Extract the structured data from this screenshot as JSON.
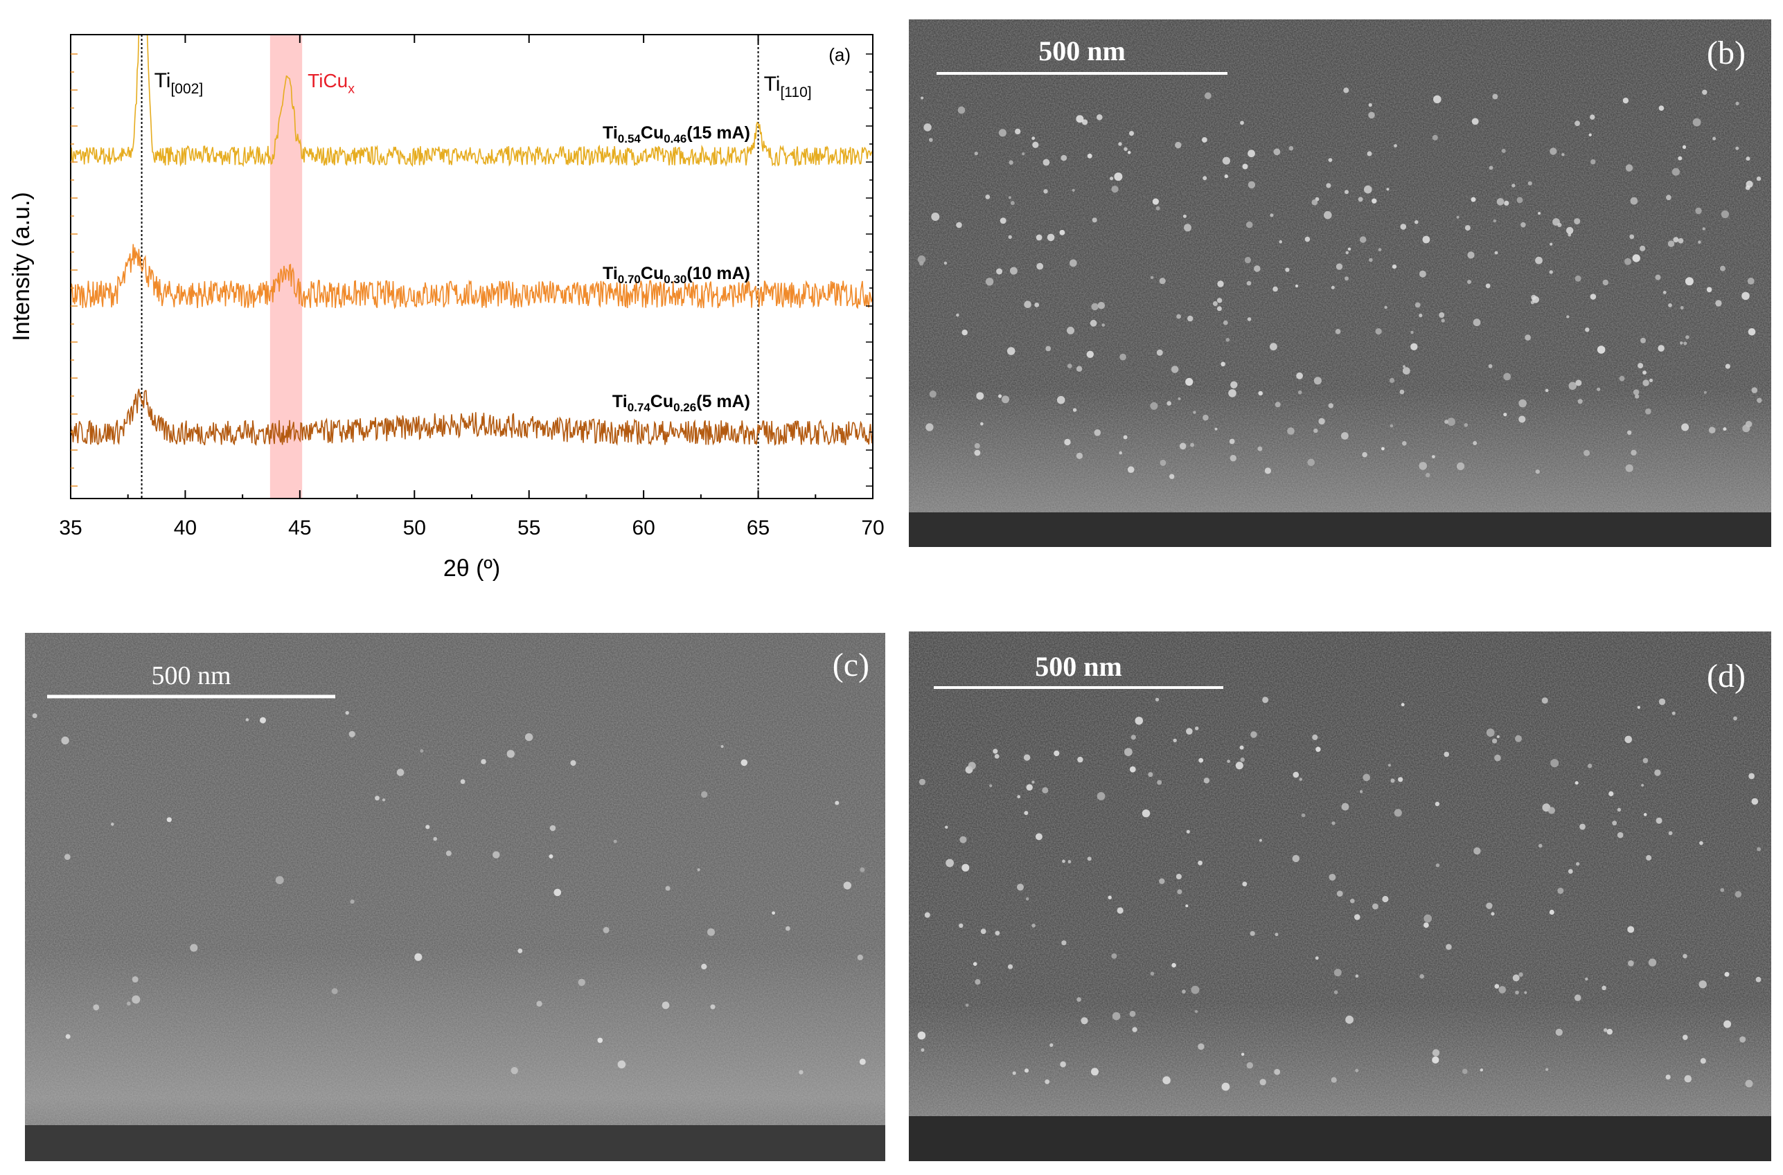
{
  "chart_data": {
    "type": "line",
    "panel_label": "(a)",
    "xlabel": "2θ (º)",
    "ylabel": "Intensity (a.u.)",
    "xlim": [
      35,
      70
    ],
    "xticks": [
      "35",
      "40",
      "45",
      "50",
      "55",
      "60",
      "65",
      "70"
    ],
    "grid": false,
    "reference_lines": [
      {
        "x": 38.1,
        "label_main": "Ti",
        "label_sub": "[002]"
      },
      {
        "x": 65.0,
        "label_main": "Ti",
        "label_sub": "[110]"
      }
    ],
    "band": {
      "x": [
        43.7,
        45.1
      ],
      "label_main": "TiCu",
      "label_sub": "x",
      "color": "#ffcccc",
      "label_color": "#e8202a"
    },
    "series": [
      {
        "name_parts": [
          "Ti",
          "0.54",
          "Cu",
          "0.46",
          "(15 mA)"
        ],
        "color": "#e6ac1f",
        "baseline": 2.0,
        "noise": 0.07,
        "peaks": [
          {
            "x": 38.15,
            "h": 1.45,
            "w": 0.18
          },
          {
            "x": 44.45,
            "h": 0.55,
            "w": 0.25
          },
          {
            "x": 65.0,
            "h": 0.25,
            "w": 0.15
          }
        ]
      },
      {
        "name_parts": [
          "Ti",
          "0.70",
          "Cu",
          "0.30",
          "(10 mA)"
        ],
        "color": "#f08a2a",
        "baseline": 1.0,
        "noise": 0.1,
        "peaks": [
          {
            "x": 37.9,
            "h": 0.3,
            "w": 0.4
          },
          {
            "x": 44.4,
            "h": 0.15,
            "w": 0.3
          }
        ]
      },
      {
        "name_parts": [
          "Ti",
          "0.74",
          "Cu",
          "0.26",
          "(5 mA)"
        ],
        "color": "#b35a10",
        "baseline": 0.0,
        "noise": 0.09,
        "peaks": [
          {
            "x": 38.1,
            "h": 0.25,
            "w": 0.4
          },
          {
            "x": 52.5,
            "h": 0.06,
            "w": 3.0
          }
        ]
      }
    ]
  },
  "panels": [
    {
      "label": "(b)",
      "scale": "500 nm",
      "bold": true
    },
    {
      "label": "(c)",
      "scale": "500 nm",
      "bold": false
    },
    {
      "label": "(d)",
      "scale": "500 nm",
      "bold": true
    }
  ]
}
